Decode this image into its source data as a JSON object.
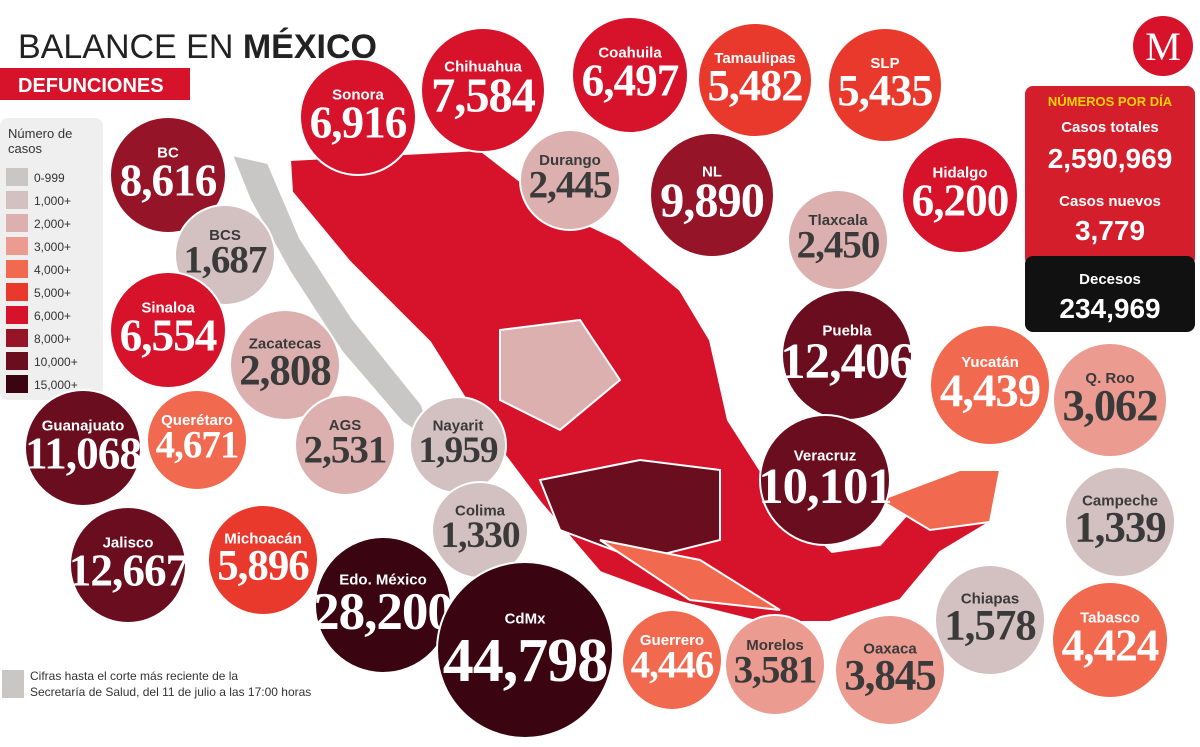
{
  "header": {
    "title_regular": "BALANCE EN",
    "title_bold": "MÉXICO",
    "subtitle": "DEFUNCIONES",
    "logo": "M"
  },
  "legend": {
    "title": "Número de casos",
    "items": [
      {
        "label": "0-999",
        "color": "#c9c6c6"
      },
      {
        "label": "1,000+",
        "color": "#d3c0c0"
      },
      {
        "label": "2,000+",
        "color": "#ddb0b0"
      },
      {
        "label": "3,000+",
        "color": "#eb9b90"
      },
      {
        "label": "4,000+",
        "color": "#f16a50"
      },
      {
        "label": "5,000+",
        "color": "#e9392c"
      },
      {
        "label": "6,000+",
        "color": "#d6132b"
      },
      {
        "label": "8,000+",
        "color": "#951428"
      },
      {
        "label": "10,000+",
        "color": "#6a0d1e"
      },
      {
        "label": "15,000+",
        "color": "#3a0410"
      }
    ]
  },
  "states": [
    {
      "name": "BC",
      "value": "8,616",
      "color": "#951428"
    },
    {
      "name": "Sonora",
      "value": "6,916",
      "color": "#d6132b"
    },
    {
      "name": "Chihuahua",
      "value": "7,584",
      "color": "#d6132b"
    },
    {
      "name": "Coahuila",
      "value": "6,497",
      "color": "#d6132b"
    },
    {
      "name": "Tamaulipas",
      "value": "5,482",
      "color": "#e9392c"
    },
    {
      "name": "SLP",
      "value": "5,435",
      "color": "#e9392c"
    },
    {
      "name": "Durango",
      "value": "2,445",
      "color": "#ddb0b0"
    },
    {
      "name": "NL",
      "value": "9,890",
      "color": "#951428"
    },
    {
      "name": "Hidalgo",
      "value": "6,200",
      "color": "#d6132b"
    },
    {
      "name": "Tlaxcala",
      "value": "2,450",
      "color": "#ddb0b0"
    },
    {
      "name": "BCS",
      "value": "1,687",
      "color": "#d3c0c0"
    },
    {
      "name": "Sinaloa",
      "value": "6,554",
      "color": "#d6132b"
    },
    {
      "name": "Zacatecas",
      "value": "2,808",
      "color": "#ddb0b0"
    },
    {
      "name": "Puebla",
      "value": "12,406",
      "color": "#6a0d1e"
    },
    {
      "name": "Yucatán",
      "value": "4,439",
      "color": "#f16a50"
    },
    {
      "name": "Q. Roo",
      "value": "3,062",
      "color": "#eb9b90"
    },
    {
      "name": "Guanajuato",
      "value": "11,068",
      "color": "#6a0d1e"
    },
    {
      "name": "Querétaro",
      "value": "4,671",
      "color": "#f16a50"
    },
    {
      "name": "AGS",
      "value": "2,531",
      "color": "#ddb0b0"
    },
    {
      "name": "Nayarit",
      "value": "1,959",
      "color": "#d3c0c0"
    },
    {
      "name": "Veracruz",
      "value": "10,101",
      "color": "#6a0d1e"
    },
    {
      "name": "Campeche",
      "value": "1,339",
      "color": "#d3c0c0"
    },
    {
      "name": "Colima",
      "value": "1,330",
      "color": "#d3c0c0"
    },
    {
      "name": "Jalisco",
      "value": "12,667",
      "color": "#6a0d1e"
    },
    {
      "name": "Michoacán",
      "value": "5,896",
      "color": "#e9392c"
    },
    {
      "name": "Edo. México",
      "value": "28,200",
      "color": "#3a0410"
    },
    {
      "name": "CdMx",
      "value": "44,798",
      "color": "#3a0410"
    },
    {
      "name": "Guerrero",
      "value": "4,446",
      "color": "#f16a50"
    },
    {
      "name": "Morelos",
      "value": "3,581",
      "color": "#eb9b90"
    },
    {
      "name": "Oaxaca",
      "value": "3,845",
      "color": "#eb9b90"
    },
    {
      "name": "Chiapas",
      "value": "1,578",
      "color": "#d3c0c0"
    },
    {
      "name": "Tabasco",
      "value": "4,424",
      "color": "#f16a50"
    }
  ],
  "daily": {
    "title": "NÚMEROS POR DÍA",
    "rows": [
      {
        "label": "Casos totales",
        "value": "2,590,969"
      },
      {
        "label": "Casos nuevos",
        "value": "3,779"
      },
      {
        "label": "Decesos",
        "value": "234,969"
      }
    ]
  },
  "footnote": [
    "Cifras hasta el corte más reciente de la",
    "Secretaría de Salud, del 11 de julio a las 17:00 horas"
  ]
}
